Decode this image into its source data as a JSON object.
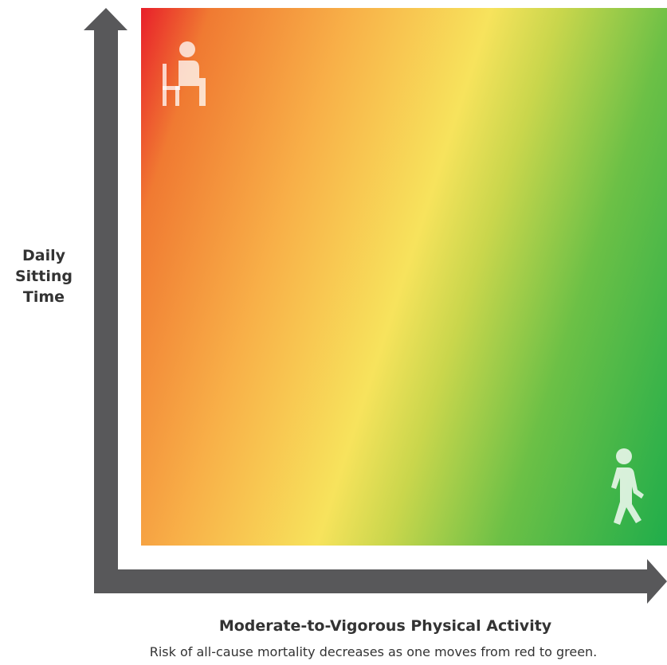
{
  "y_axis_label": "Daily Sitting Time",
  "x_axis_label": "Moderate-to-Vigorous Physical Activity",
  "caption": "Risk of all-cause mortality decreases as one moves from red to green."
}
